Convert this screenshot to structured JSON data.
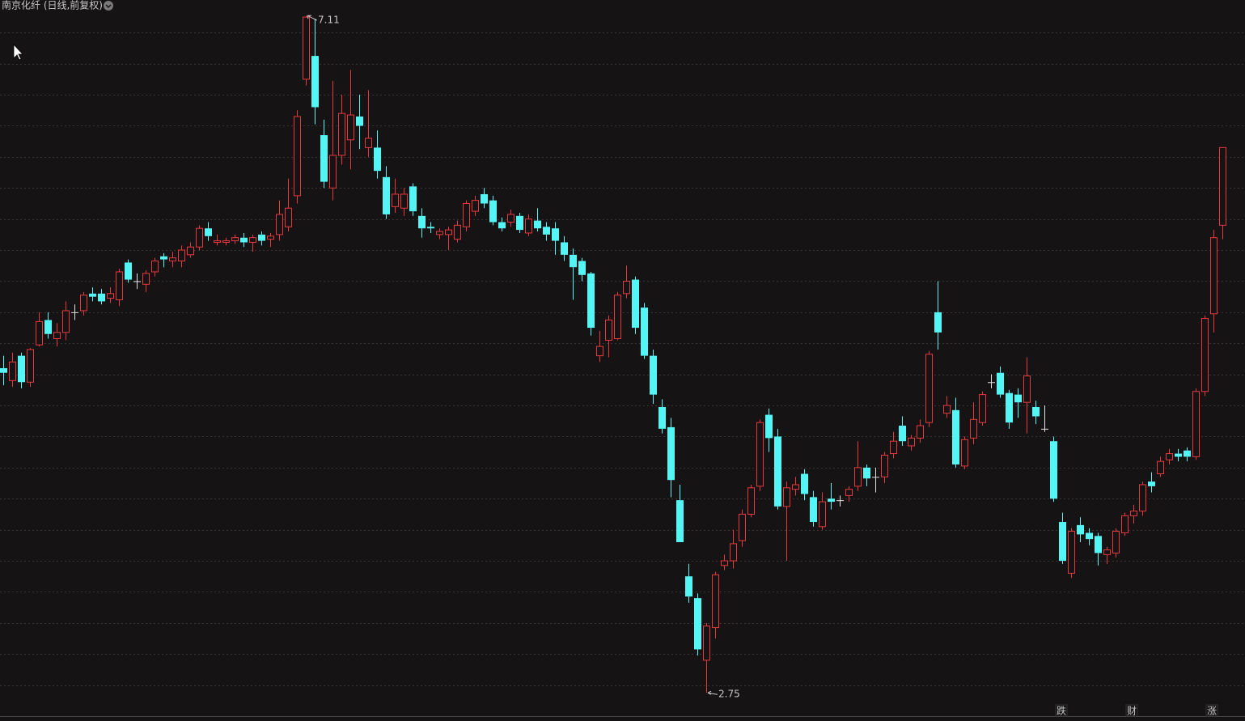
{
  "chart_data": {
    "type": "candlestick",
    "title": "南京化纤 (日线,前复权)",
    "open": [
      4.84,
      4.76,
      4.92,
      4.75,
      4.99,
      5.15,
      5.03,
      5.07,
      5.2,
      5.21,
      5.32,
      5.32,
      5.29,
      5.28,
      5.52,
      5.4,
      5.38,
      5.46,
      5.56,
      5.53,
      5.53,
      5.57,
      5.62,
      5.74,
      5.65,
      5.65,
      5.66,
      5.68,
      5.65,
      5.7,
      5.67,
      5.7,
      5.75,
      5.95,
      6.7,
      6.85,
      6.34,
      6.0,
      6.21,
      6.31,
      6.46,
      6.26,
      6.26,
      6.07,
      5.88,
      5.87,
      6.01,
      5.82,
      5.75,
      5.7,
      5.7,
      5.67,
      5.75,
      5.85,
      5.96,
      5.92,
      5.78,
      5.78,
      5.82,
      5.71,
      5.79,
      5.75,
      5.74,
      5.65,
      5.57,
      5.53,
      5.45,
      4.92,
      5.02,
      5.03,
      5.32,
      5.41,
      5.23,
      4.92,
      4.59,
      4.46,
      3.99,
      3.5,
      3.36,
      2.96,
      3.17,
      3.57,
      3.6,
      3.73,
      3.9,
      4.08,
      4.54,
      4.4,
      3.95,
      4.06,
      4.16,
      4.01,
      3.82,
      4.0,
      3.99,
      4.02,
      4.08,
      4.2,
      4.14,
      4.14,
      4.29,
      4.47,
      4.34,
      4.39,
      4.49,
      5.2,
      4.55,
      4.57,
      4.21,
      4.39,
      4.49,
      4.75,
      4.81,
      4.68,
      4.67,
      4.62,
      4.59,
      4.45,
      4.37,
      3.85,
      3.52,
      3.83,
      3.78,
      3.76,
      3.64,
      3.65,
      3.78,
      3.89,
      3.92,
      4.11,
      4.16,
      4.25,
      4.29,
      4.31,
      4.27,
      4.69,
      5.19,
      5.76
    ],
    "high": [
      4.92,
      4.94,
      4.94,
      4.97,
      5.2,
      5.2,
      5.13,
      5.27,
      5.25,
      5.33,
      5.36,
      5.35,
      5.36,
      5.48,
      5.54,
      5.45,
      5.47,
      5.55,
      5.58,
      5.59,
      5.63,
      5.65,
      5.76,
      5.78,
      5.7,
      5.68,
      5.7,
      5.71,
      5.7,
      5.72,
      5.71,
      5.92,
      6.06,
      6.5,
      7.11,
      7.09,
      6.44,
      6.69,
      6.6,
      6.76,
      6.6,
      6.63,
      6.37,
      6.14,
      6.06,
      6.0,
      6.03,
      5.87,
      5.78,
      5.74,
      5.75,
      5.79,
      5.92,
      5.95,
      6.0,
      5.95,
      5.81,
      5.86,
      5.84,
      5.83,
      5.87,
      5.78,
      5.78,
      5.69,
      5.61,
      5.55,
      5.46,
      5.08,
      5.18,
      5.33,
      5.5,
      5.43,
      5.26,
      4.96,
      4.64,
      4.52,
      4.09,
      3.58,
      3.39,
      3.2,
      3.53,
      3.64,
      3.8,
      3.93,
      4.09,
      4.51,
      4.58,
      4.45,
      4.11,
      4.14,
      4.19,
      4.05,
      4.04,
      4.1,
      4.02,
      4.08,
      4.37,
      4.22,
      4.2,
      4.3,
      4.43,
      4.53,
      4.41,
      4.51,
      4.95,
      5.4,
      4.66,
      4.65,
      4.4,
      4.62,
      4.69,
      4.8,
      4.85,
      4.7,
      4.71,
      4.91,
      4.63,
      4.6,
      4.4,
      3.91,
      3.81,
      3.88,
      3.81,
      3.78,
      3.69,
      3.81,
      3.91,
      3.96,
      4.11,
      4.17,
      4.27,
      4.32,
      4.32,
      4.33,
      4.71,
      5.18,
      5.73,
      6.26
    ],
    "low": [
      4.73,
      4.72,
      4.71,
      4.72,
      4.98,
      5.03,
      4.98,
      5.02,
      5.15,
      5.18,
      5.27,
      5.25,
      5.26,
      5.24,
      5.39,
      5.35,
      5.33,
      5.43,
      5.49,
      5.49,
      5.49,
      5.55,
      5.6,
      5.66,
      5.63,
      5.63,
      5.64,
      5.62,
      5.59,
      5.63,
      5.62,
      5.66,
      5.72,
      5.9,
      6.66,
      6.41,
      6.0,
      5.92,
      6.15,
      6.12,
      6.25,
      6.2,
      6.06,
      5.8,
      5.84,
      5.82,
      5.82,
      5.68,
      5.71,
      5.67,
      5.6,
      5.65,
      5.72,
      5.82,
      5.87,
      5.76,
      5.72,
      5.75,
      5.71,
      5.69,
      5.72,
      5.66,
      5.57,
      5.53,
      5.28,
      5.4,
      5.05,
      4.88,
      4.91,
      5.02,
      5.29,
      5.06,
      4.9,
      4.61,
      4.42,
      4.01,
      3.72,
      3.33,
      2.99,
      2.75,
      3.1,
      3.54,
      3.55,
      3.69,
      3.88,
      4.05,
      4.3,
      3.93,
      3.6,
      4.02,
      3.99,
      3.82,
      3.8,
      3.93,
      3.95,
      3.98,
      4.05,
      4.08,
      4.04,
      4.1,
      4.26,
      4.34,
      4.31,
      4.36,
      4.46,
      4.96,
      4.52,
      4.2,
      4.19,
      4.35,
      4.47,
      4.71,
      4.65,
      4.45,
      4.52,
      4.42,
      4.48,
      4.43,
      3.98,
      3.58,
      3.49,
      3.72,
      3.7,
      3.57,
      3.58,
      3.62,
      3.76,
      3.84,
      3.89,
      4.04,
      4.14,
      4.22,
      4.24,
      4.24,
      4.25,
      4.66,
      5.07,
      5.67
    ],
    "close": [
      4.81,
      4.88,
      4.75,
      4.96,
      5.14,
      5.06,
      5.07,
      5.21,
      5.2,
      5.31,
      5.3,
      5.27,
      5.32,
      5.46,
      5.41,
      5.4,
      5.45,
      5.53,
      5.54,
      5.55,
      5.6,
      5.62,
      5.74,
      5.69,
      5.66,
      5.66,
      5.68,
      5.65,
      5.68,
      5.66,
      5.69,
      5.83,
      5.87,
      6.46,
      7.1,
      6.52,
      6.04,
      6.21,
      6.48,
      6.47,
      6.4,
      6.32,
      6.11,
      5.83,
      5.96,
      5.96,
      5.85,
      5.74,
      5.74,
      5.72,
      5.73,
      5.76,
      5.9,
      5.92,
      5.9,
      5.78,
      5.74,
      5.83,
      5.73,
      5.8,
      5.74,
      5.7,
      5.66,
      5.57,
      5.49,
      5.44,
      5.1,
      4.98,
      5.15,
      5.31,
      5.4,
      5.1,
      4.92,
      4.67,
      4.45,
      4.12,
      3.72,
      3.37,
      3.03,
      3.18,
      3.51,
      3.6,
      3.71,
      3.9,
      4.07,
      4.49,
      4.39,
      3.95,
      4.07,
      4.09,
      4.03,
      3.85,
      3.98,
      3.98,
      3.99,
      4.06,
      4.2,
      4.13,
      4.14,
      4.28,
      4.37,
      4.37,
      4.39,
      4.47,
      4.93,
      5.07,
      4.6,
      4.22,
      4.38,
      4.51,
      4.67,
      4.75,
      4.67,
      4.49,
      4.62,
      4.79,
      4.53,
      4.45,
      4.0,
      3.6,
      3.79,
      3.77,
      3.74,
      3.65,
      3.67,
      3.79,
      3.89,
      3.92,
      4.09,
      4.08,
      4.24,
      4.29,
      4.27,
      4.27,
      4.69,
      5.16,
      5.68,
      6.26
    ],
    "up_color": "#e8383d",
    "down_color": "#54f5f5",
    "flat_color": "#e0e0e0",
    "ylim": [
      2.6,
      7.21
    ],
    "yticks": [
      2.8,
      3.0,
      3.2,
      3.4,
      3.6,
      3.8,
      4.0,
      4.2,
      4.4,
      4.6,
      4.8,
      5.0,
      5.2,
      5.4,
      5.6,
      5.8,
      6.0,
      6.2,
      6.4,
      6.6,
      6.8,
      7.0
    ],
    "grid": true,
    "annotations": [
      {
        "label": "7.11",
        "value": 7.11,
        "kind": "high"
      },
      {
        "label": "2.75",
        "value": 2.75,
        "kind": "low"
      }
    ],
    "badges": [
      {
        "label": "跌",
        "color": "#3fd23f"
      },
      {
        "label": "财",
        "color": "#5aa8ff"
      },
      {
        "label": "涨",
        "color": "#ff4040"
      }
    ]
  }
}
